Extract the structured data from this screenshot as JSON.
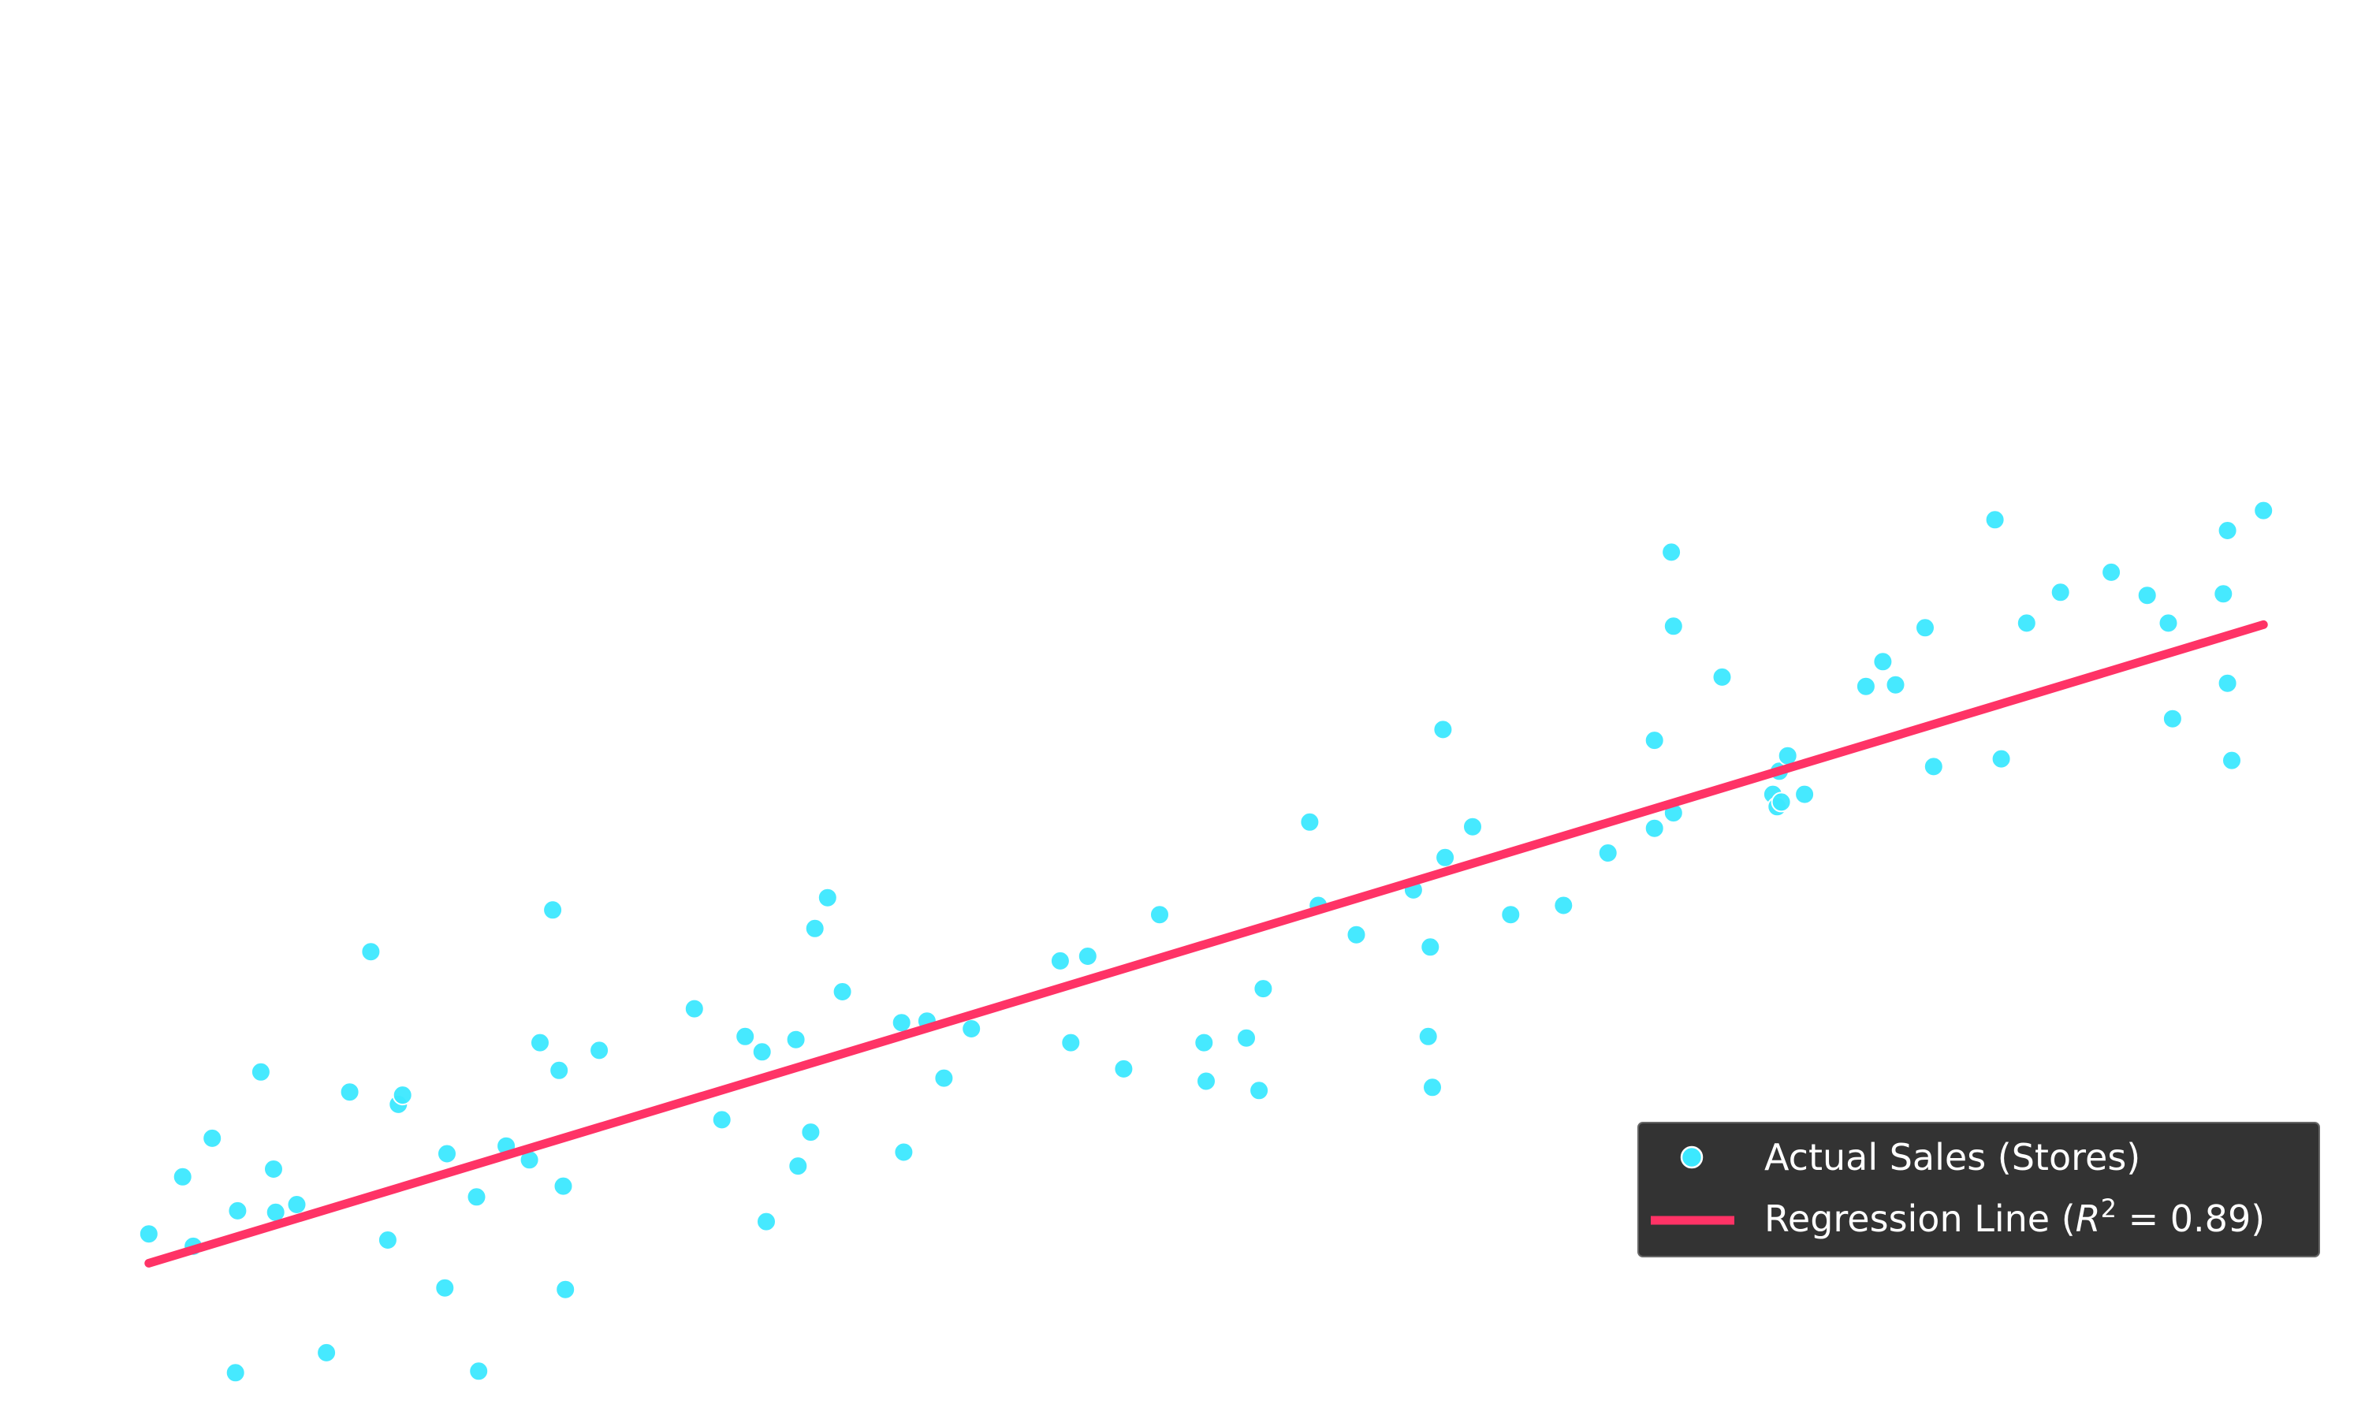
{
  "colors": {
    "background": "#ffffff",
    "scatter": "#3ce8ff",
    "scatter_edge": "#ffffff",
    "regression": "#ff3366",
    "legend_bg": "#333333",
    "legend_text": "#ffffff"
  },
  "legend": {
    "scatter_label": "Actual Sales (Stores)",
    "line_label_prefix": "Regression Line (",
    "line_label_r": "R",
    "line_label_exp": "2",
    "line_label_suffix": " = 0.89)"
  },
  "chart_data": {
    "type": "scatter",
    "title": "",
    "xlabel": "",
    "ylabel": "",
    "axes_visible": false,
    "grid": false,
    "legend_position": "lower-right",
    "xlim": [
      -4.8,
      104.8
    ],
    "ylim": [
      -9.5,
      82.5
    ],
    "series": [
      {
        "name": "Actual Sales (Stores)",
        "kind": "scatter",
        "x": [
          0.0,
          1.6,
          2.1,
          3.0,
          4.1,
          4.2,
          5.3,
          5.9,
          6.0,
          7.0,
          8.4,
          9.5,
          10.5,
          11.3,
          11.8,
          12.0,
          14.0,
          14.1,
          15.5,
          15.6,
          16.9,
          18.0,
          18.5,
          19.1,
          19.4,
          19.6,
          19.7,
          21.3,
          25.8,
          27.1,
          28.2,
          29.0,
          29.2,
          30.6,
          30.7,
          31.3,
          31.5,
          32.1,
          32.8,
          35.6,
          35.7,
          36.8,
          37.6,
          38.9,
          43.1,
          43.6,
          44.4,
          46.1,
          47.8,
          49.9,
          50.0,
          51.9,
          52.5,
          52.7,
          54.9,
          55.3,
          57.1,
          59.8,
          60.5,
          60.6,
          60.7,
          61.2,
          61.3,
          62.6,
          64.4,
          66.9,
          69.0,
          71.2,
          71.2,
          72.0,
          72.1,
          72.1,
          74.4,
          76.8,
          77.0,
          77.1,
          77.2,
          77.5,
          78.3,
          81.2,
          82.0,
          82.6,
          84.0,
          84.4,
          87.3,
          87.6,
          88.8,
          90.4,
          92.8,
          94.5,
          95.5,
          95.7,
          98.1,
          98.3,
          98.3,
          98.5,
          100.0
        ],
        "y": [
          2.5,
          6.2,
          1.7,
          8.7,
          -6.5,
          4.0,
          13.0,
          6.7,
          3.9,
          4.4,
          -5.2,
          11.7,
          20.8,
          2.1,
          10.9,
          11.5,
          -1.0,
          7.7,
          4.9,
          -6.4,
          8.2,
          7.3,
          14.9,
          23.5,
          13.1,
          5.6,
          -1.1,
          14.4,
          17.1,
          9.9,
          15.3,
          14.3,
          3.3,
          15.1,
          6.9,
          9.1,
          22.3,
          24.3,
          18.2,
          16.2,
          7.8,
          16.3,
          12.6,
          15.8,
          20.2,
          14.9,
          20.5,
          13.2,
          23.2,
          14.9,
          12.4,
          15.2,
          11.8,
          18.4,
          29.2,
          23.8,
          21.9,
          24.8,
          15.3,
          21.1,
          12.0,
          35.2,
          26.9,
          28.9,
          23.2,
          23.8,
          27.2,
          34.5,
          28.8,
          46.7,
          29.8,
          41.9,
          38.6,
          31.0,
          30.2,
          32.5,
          30.5,
          33.5,
          31.0,
          38.0,
          39.6,
          38.1,
          41.8,
          32.8,
          48.8,
          33.3,
          42.1,
          44.1,
          45.4,
          43.9,
          42.1,
          35.9,
          44.0,
          48.1,
          38.2,
          33.2,
          49.4
        ]
      },
      {
        "name": "Regression Line (R^2 = 0.89)",
        "kind": "line",
        "r_squared": 0.89,
        "x": [
          0,
          100
        ],
        "y": [
          0.6,
          42.0
        ]
      }
    ]
  }
}
